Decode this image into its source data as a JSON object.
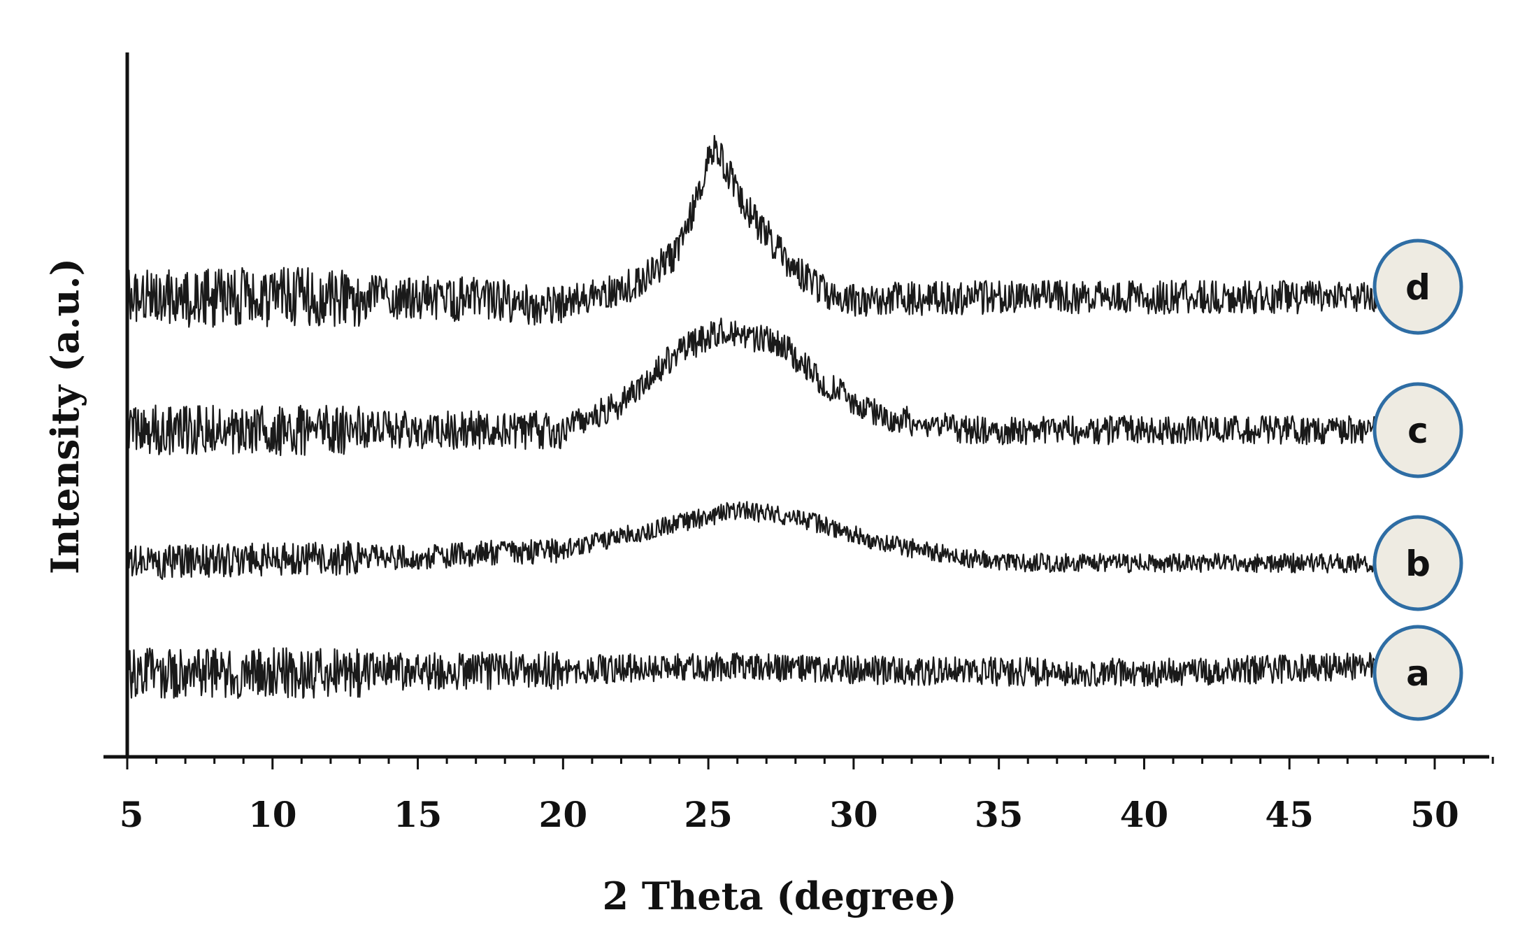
{
  "chart_data": {
    "type": "line",
    "title": "",
    "xlabel": "2 Theta (degree)",
    "ylabel": "Intensity (a.u.)",
    "xlim": [
      5,
      52
    ],
    "x_ticks": [
      5,
      10,
      15,
      20,
      25,
      30,
      35,
      40,
      45,
      50
    ],
    "x_tick_labels": [
      "5",
      "10",
      "15",
      "20",
      "25",
      "30",
      "35",
      "40",
      "45",
      "50"
    ],
    "y_ticks_shown": false,
    "grid": false,
    "legend": "labels at right end of traces",
    "series": [
      {
        "name": "a",
        "baseline": 1.0,
        "noise": 0.12,
        "profile": [
          [
            5,
            1.0
          ],
          [
            10,
            1.0
          ],
          [
            20,
            1.02
          ],
          [
            25,
            1.05
          ],
          [
            30,
            1.02
          ],
          [
            40,
            1.0
          ],
          [
            48,
            1.05
          ]
        ]
      },
      {
        "name": "b",
        "baseline": 2.0,
        "noise": 0.08,
        "profile": [
          [
            5,
            2.0
          ],
          [
            15,
            2.05
          ],
          [
            20,
            2.1
          ],
          [
            23,
            2.25
          ],
          [
            26,
            2.4
          ],
          [
            28,
            2.35
          ],
          [
            31,
            2.15
          ],
          [
            35,
            2.0
          ],
          [
            48,
            2.0
          ]
        ]
      },
      {
        "name": "c",
        "baseline": 3.0,
        "noise": 0.12,
        "profile": [
          [
            5,
            3.0
          ],
          [
            15,
            3.0
          ],
          [
            20,
            3.0
          ],
          [
            22,
            3.2
          ],
          [
            24,
            3.6
          ],
          [
            25.5,
            3.75
          ],
          [
            27.5,
            3.65
          ],
          [
            29,
            3.35
          ],
          [
            31,
            3.1
          ],
          [
            34,
            3.0
          ],
          [
            48,
            3.0
          ]
        ]
      },
      {
        "name": "d",
        "baseline": 4.0,
        "noise": 0.14,
        "profile": [
          [
            5,
            4.0
          ],
          [
            15,
            4.0
          ],
          [
            20,
            3.95
          ],
          [
            22.5,
            4.1
          ],
          [
            24,
            4.35
          ],
          [
            25.2,
            5.15
          ],
          [
            26.5,
            4.6
          ],
          [
            28,
            4.2
          ],
          [
            29.5,
            3.98
          ],
          [
            35,
            4.0
          ],
          [
            48,
            4.0
          ]
        ]
      }
    ],
    "labels": [
      "a",
      "b",
      "c",
      "d"
    ]
  }
}
